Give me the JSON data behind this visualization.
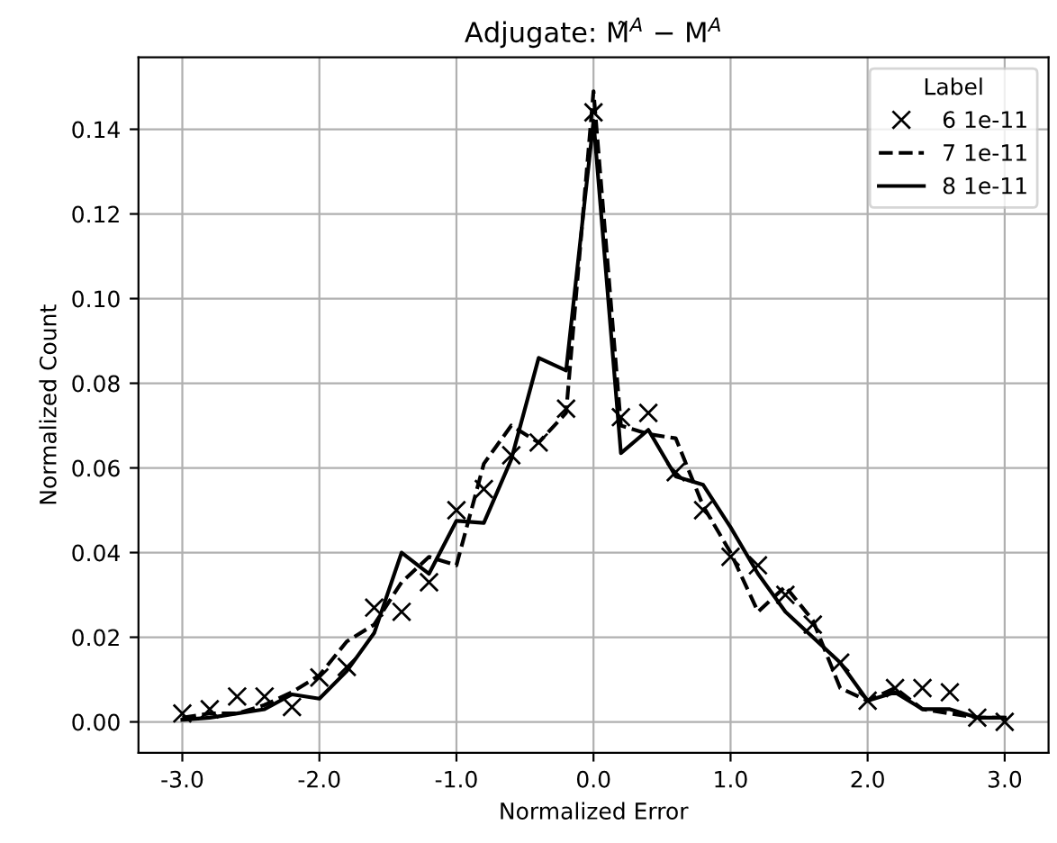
{
  "chart_data": {
    "type": "line",
    "title": "Adjugate: M̃$^{A}$ − M$^{A}$",
    "xlabel": "Normalized Error",
    "ylabel": "Normalized Count",
    "legend_title": "Label",
    "x": [
      -3.0,
      -2.8,
      -2.6,
      -2.4,
      -2.2,
      -2.0,
      -1.8,
      -1.6,
      -1.4,
      -1.2,
      -1.0,
      -0.8,
      -0.6,
      -0.4,
      -0.2,
      0.0,
      0.2,
      0.4,
      0.6,
      0.8,
      1.0,
      1.2,
      1.4,
      1.6,
      1.8,
      2.0,
      2.2,
      2.4,
      2.6,
      2.8,
      3.0
    ],
    "series": [
      {
        "name": "6 1e-11",
        "color": "#000000",
        "type": "scatter",
        "marker": "cross",
        "values": [
          0.002,
          0.003,
          0.006,
          0.006,
          0.0035,
          0.0105,
          0.013,
          0.027,
          0.026,
          0.033,
          0.05,
          0.055,
          0.063,
          0.066,
          0.074,
          0.144,
          0.072,
          0.073,
          0.059,
          0.05,
          0.039,
          0.037,
          0.03,
          0.023,
          0.014,
          0.005,
          0.008,
          0.008,
          0.007,
          0.001,
          0.0
        ]
      },
      {
        "name": "7 1e-11",
        "color": "#000000",
        "line_style": "dashed",
        "values": [
          0.001,
          0.002,
          0.002,
          0.004,
          0.007,
          0.011,
          0.019,
          0.023,
          0.033,
          0.039,
          0.037,
          0.061,
          0.07,
          0.066,
          0.073,
          0.149,
          0.07,
          0.068,
          0.067,
          0.051,
          0.04,
          0.026,
          0.032,
          0.024,
          0.008,
          0.005,
          0.008,
          0.003,
          0.002,
          0.001,
          0.001
        ]
      },
      {
        "name": "8 1e-11",
        "color": "#000000",
        "line_style": "solid",
        "values": [
          0.0005,
          0.001,
          0.002,
          0.003,
          0.0065,
          0.0055,
          0.012,
          0.021,
          0.04,
          0.035,
          0.0475,
          0.047,
          0.062,
          0.086,
          0.083,
          0.142,
          0.0635,
          0.069,
          0.058,
          0.056,
          0.046,
          0.035,
          0.026,
          0.02,
          0.014,
          0.005,
          0.007,
          0.003,
          0.003,
          0.001,
          0.001
        ]
      }
    ],
    "xlim": [
      -3.32,
      3.32
    ],
    "ylim": [
      -0.0073,
      0.157
    ],
    "xticks": [
      {
        "value": -3,
        "label": "-3.0"
      },
      {
        "value": -2,
        "label": "-2.0"
      },
      {
        "value": -1,
        "label": "-1.0"
      },
      {
        "value": 0,
        "label": "0.0"
      },
      {
        "value": 1,
        "label": "1.0"
      },
      {
        "value": 2,
        "label": "2.0"
      },
      {
        "value": 3,
        "label": "3.0"
      }
    ],
    "yticks": [
      {
        "value": 0,
        "label": "0.00"
      },
      {
        "value": 0.02,
        "label": "0.02"
      },
      {
        "value": 0.04,
        "label": "0.04"
      },
      {
        "value": 0.06,
        "label": "0.06"
      },
      {
        "value": 0.08,
        "label": "0.08"
      },
      {
        "value": 0.1,
        "label": "0.10"
      },
      {
        "value": 0.12,
        "label": "0.12"
      },
      {
        "value": 0.14,
        "label": "0.14"
      }
    ],
    "grid": true,
    "legend": "top right"
  }
}
